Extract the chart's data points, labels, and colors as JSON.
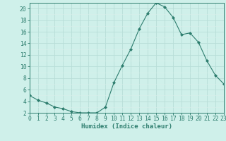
{
  "x": [
    0,
    1,
    2,
    3,
    4,
    5,
    6,
    7,
    8,
    9,
    10,
    11,
    12,
    13,
    14,
    15,
    16,
    17,
    18,
    19,
    20,
    21,
    22,
    23
  ],
  "y": [
    5.0,
    4.2,
    3.7,
    3.0,
    2.7,
    2.2,
    2.0,
    2.0,
    2.0,
    3.0,
    7.2,
    10.2,
    13.0,
    16.5,
    19.2,
    21.0,
    20.3,
    18.5,
    15.5,
    15.8,
    14.2,
    11.0,
    8.5,
    7.0
  ],
  "line_color": "#2d7d6e",
  "marker": "D",
  "marker_size": 2.0,
  "bg_color": "#cff0ea",
  "grid_major_color": "#b8ddd7",
  "grid_minor_color": "#d8efeb",
  "xlabel": "Humidex (Indice chaleur)",
  "ylabel": "",
  "xlim": [
    0,
    23
  ],
  "ylim": [
    2,
    21
  ],
  "yticks": [
    2,
    4,
    6,
    8,
    10,
    12,
    14,
    16,
    18,
    20
  ],
  "xticks": [
    0,
    1,
    2,
    3,
    4,
    5,
    6,
    7,
    8,
    9,
    10,
    11,
    12,
    13,
    14,
    15,
    16,
    17,
    18,
    19,
    20,
    21,
    22,
    23
  ],
  "tick_color": "#2d7d6e",
  "label_fontsize": 6.5,
  "tick_fontsize": 5.8,
  "spine_color": "#2d7d6e"
}
